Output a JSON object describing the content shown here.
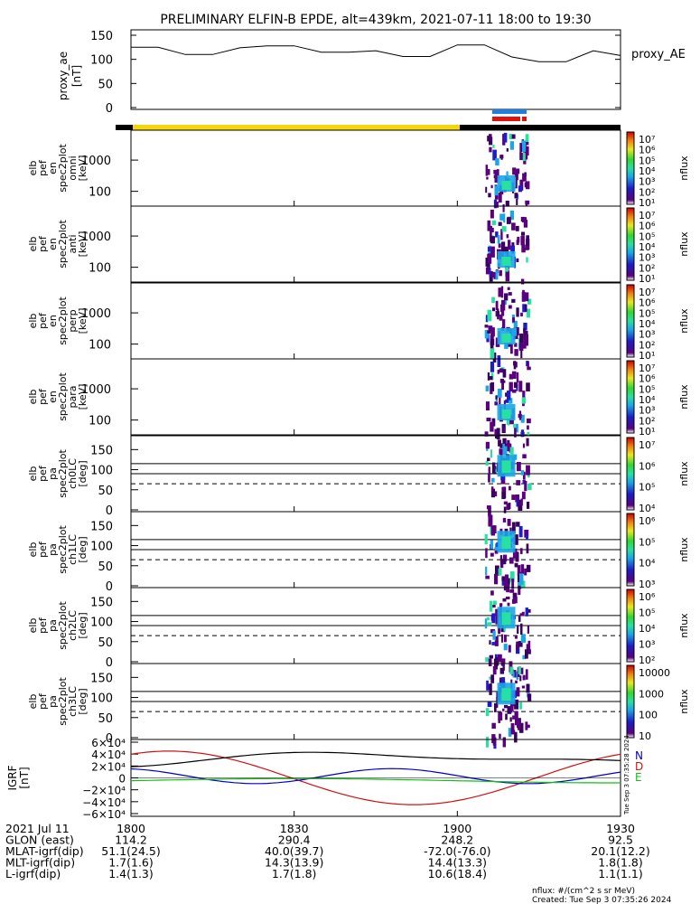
{
  "title": "PRELIMINARY ELFIN-B EPDE, alt=439km, 2021-07-11 18:00 to 19:30",
  "time_axis": {
    "start": "18:00",
    "end": "19:30",
    "labels": [
      "1800",
      "1830",
      "1900",
      "1930"
    ]
  },
  "ae_panel": {
    "ylabel_lines": [
      "proxy_ae",
      "[nT]"
    ],
    "legend": "proxy_AE",
    "yticks": [
      "0",
      "50",
      "100",
      "150"
    ]
  },
  "status_bar": {
    "colors": {
      "black": "#000000",
      "yellow": "#f5d60a"
    }
  },
  "markers": {
    "blue": "#1e7fe0",
    "red": "#e01010"
  },
  "energy_panels": [
    {
      "ylabel_lines": [
        "elb",
        "pef",
        "en",
        "spec2plot",
        "omni",
        "[keV]"
      ],
      "yticks": [
        "100",
        "1000"
      ],
      "cb_ticks": [
        "10⁷",
        "10⁶",
        "10⁵",
        "10⁴",
        "10³",
        "10²",
        "10¹"
      ],
      "cb_label": "nflux"
    },
    {
      "ylabel_lines": [
        "elb",
        "pef",
        "en",
        "spec2plot",
        "anti",
        "[keV]"
      ],
      "yticks": [
        "100",
        "1000"
      ],
      "cb_ticks": [
        "10⁷",
        "10⁶",
        "10⁵",
        "10⁴",
        "10³",
        "10²",
        "10¹"
      ],
      "cb_label": "nflux"
    },
    {
      "ylabel_lines": [
        "elb",
        "pef",
        "en",
        "spec2plot",
        "perp",
        "[keV]"
      ],
      "yticks": [
        "100",
        "1000"
      ],
      "cb_ticks": [
        "10⁷",
        "10⁶",
        "10⁵",
        "10⁴",
        "10³",
        "10²",
        "10¹"
      ],
      "cb_label": "nflux"
    },
    {
      "ylabel_lines": [
        "elb",
        "pef",
        "en",
        "spec2plot",
        "para",
        "[keV]"
      ],
      "yticks": [
        "100",
        "1000"
      ],
      "cb_ticks": [
        "10⁷",
        "10⁶",
        "10⁵",
        "10⁴",
        "10³",
        "10²",
        "10¹"
      ],
      "cb_label": "nflux"
    }
  ],
  "pitch_panels": [
    {
      "ylabel_lines": [
        "elb",
        "pef",
        "pa",
        "spec2plot",
        "ch0LC",
        "[deg]"
      ],
      "yticks": [
        "0",
        "50",
        "100",
        "150"
      ],
      "cb_ticks": [
        "10⁷",
        "10⁶",
        "10⁵",
        "10⁴"
      ],
      "cb_label": "nflux"
    },
    {
      "ylabel_lines": [
        "elb",
        "pef",
        "pa",
        "spec2plot",
        "ch1LC",
        "[deg]"
      ],
      "yticks": [
        "0",
        "50",
        "100",
        "150"
      ],
      "cb_ticks": [
        "10⁶",
        "10⁵",
        "10⁴",
        "10³"
      ],
      "cb_label": "nflux"
    },
    {
      "ylabel_lines": [
        "elb",
        "pef",
        "pa",
        "spec2plot",
        "ch2LC",
        "[deg]"
      ],
      "yticks": [
        "0",
        "50",
        "100",
        "150"
      ],
      "cb_ticks": [
        "10⁶",
        "10⁵",
        "10⁴",
        "10³",
        "10²"
      ],
      "cb_label": "nflux"
    },
    {
      "ylabel_lines": [
        "elb",
        "pef",
        "pa",
        "spec2plot",
        "ch3LC",
        "[deg]"
      ],
      "yticks": [
        "0",
        "50",
        "100",
        "150"
      ],
      "cb_ticks": [
        "10000",
        "1000",
        "100",
        "10"
      ],
      "cb_label": "nflux"
    }
  ],
  "igrf_panel": {
    "ylabel_lines": [
      "IGRF",
      "[nT]"
    ],
    "yticks": [
      "−6×10⁴",
      "−4×10⁴",
      "−2×10⁴",
      "0",
      "2×10⁴",
      "4×10⁴",
      "6×10⁴"
    ],
    "legend": [
      {
        "label": "N",
        "color": "#0000cc"
      },
      {
        "label": "D",
        "color": "#d01010"
      },
      {
        "label": "E",
        "color": "#10c010"
      }
    ],
    "stamp": "Tue Sep  3 07:35:28 2024"
  },
  "footer_rows": [
    [
      "2021 Jul 11",
      "1800",
      "1830",
      "1900",
      "1930"
    ],
    [
      "GLON (east)",
      "114.2",
      "290.4",
      "248.2",
      "92.5"
    ],
    [
      "MLAT-igrf(dip)",
      "51.1(24.5)",
      "40.0(39.7)",
      "-72.0(-76.0)",
      "20.1(12.2)"
    ],
    [
      "MLT-igrf(dip)",
      "1.7(1.6)",
      "14.3(13.9)",
      "14.4(13.3)",
      "1.8(1.8)"
    ],
    [
      "L-igrf(dip)",
      "1.4(1.3)",
      "1.7(1.8)",
      "10.6(18.4)",
      "1.1(1.1)"
    ]
  ],
  "footnote": "nflux: #/(cm^2 s sr MeV)",
  "created": "Created: Tue Sep  3 07:35:26 2024",
  "chart_data": {
    "type": "line",
    "x": [
      "18:00",
      "18:05",
      "18:10",
      "18:15",
      "18:20",
      "18:25",
      "18:30",
      "18:35",
      "18:40",
      "18:45",
      "18:50",
      "18:55",
      "19:00",
      "19:05",
      "19:10",
      "19:15",
      "19:20",
      "19:25",
      "19:30"
    ],
    "series": [
      {
        "name": "proxy_AE",
        "values": [
          125,
          125,
          110,
          110,
          124,
          128,
          128,
          115,
          115,
          118,
          106,
          106,
          130,
          130,
          105,
          95,
          95,
          118,
          108
        ]
      }
    ],
    "title": "PRELIMINARY ELFIN-B EPDE, alt=439km, 2021-07-11 18:00 to 19:30",
    "ylabel": "proxy_ae [nT]",
    "ylim": [
      0,
      150
    ]
  }
}
